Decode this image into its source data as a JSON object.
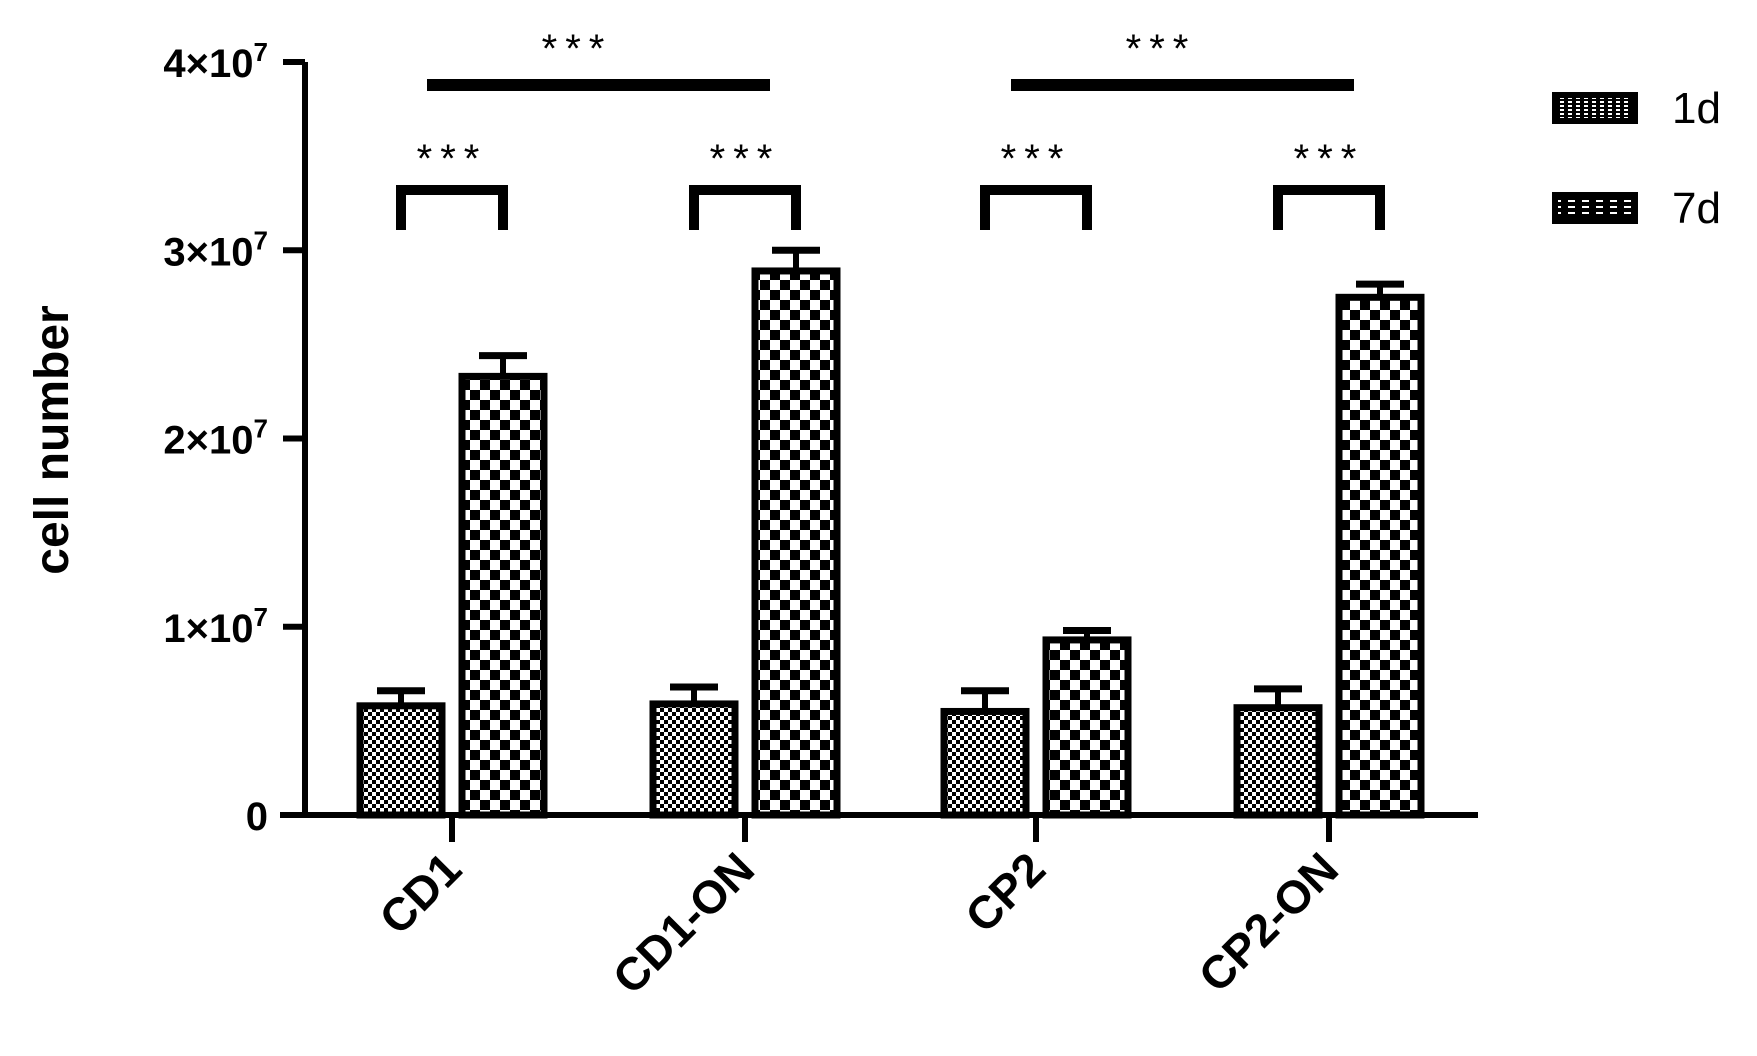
{
  "chart_data": {
    "type": "bar",
    "ylabel": "cell number",
    "ylim": [
      0,
      40000000
    ],
    "yticks": [
      {
        "value": 0,
        "base": "0",
        "exp": ""
      },
      {
        "value": 10000000,
        "base": "1×10",
        "exp": "7"
      },
      {
        "value": 20000000,
        "base": "2×10",
        "exp": "7"
      },
      {
        "value": 30000000,
        "base": "3×10",
        "exp": "7"
      },
      {
        "value": 40000000,
        "base": "4×10",
        "exp": "7"
      }
    ],
    "categories": [
      "CD1",
      "CD1-ON",
      "CP2",
      "CP2-ON"
    ],
    "series": [
      {
        "name": "1d",
        "values": [
          5800000,
          5900000,
          5500000,
          5700000
        ],
        "errors": [
          800000,
          900000,
          1100000,
          1000000
        ]
      },
      {
        "name": "7d",
        "values": [
          23300000,
          28900000,
          9300000,
          27500000
        ],
        "errors": [
          1100000,
          1100000,
          500000,
          700000
        ]
      }
    ],
    "legend": {
      "position": "top-right",
      "entries": [
        "1d",
        "7d"
      ]
    },
    "grid": false,
    "significance": {
      "within_group": [
        "***",
        "***",
        "***",
        "***"
      ],
      "between_groups": [
        {
          "from": "CD1",
          "to": "CD1-ON",
          "label": "***"
        },
        {
          "from": "CP2",
          "to": "CP2-ON",
          "label": "***"
        }
      ]
    }
  }
}
